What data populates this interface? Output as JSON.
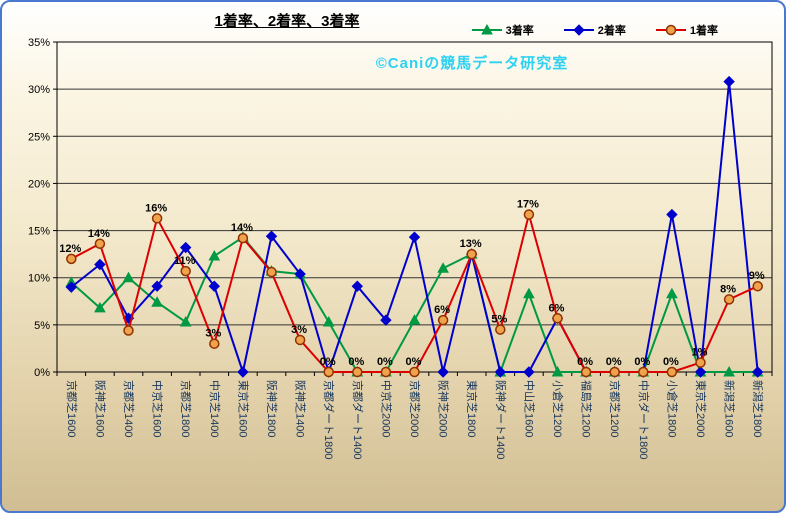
{
  "title": "1着率、2着率、3着率",
  "watermark": "©Caniの競馬データ研究室",
  "axis": {
    "y_tick_labels": [
      "0%",
      "5%",
      "10%",
      "15%",
      "20%",
      "25%",
      "30%",
      "35%"
    ]
  },
  "colors": {
    "window_border": "#4a77cf",
    "grid": "#333333",
    "x_label": "#17365d",
    "y_label": "#000000",
    "data_label": "#000000",
    "watermark": "#2ed1f2"
  },
  "chart_data": {
    "type": "line",
    "title": "1着率、2着率、3着率",
    "xlabel": "",
    "ylabel": "",
    "ylim": [
      0,
      35
    ],
    "ytick_step": 5,
    "grid": true,
    "legend_position": "top-right",
    "categories": [
      "京都芝1600",
      "阪神芝1600",
      "京都芝1400",
      "中京芝1600",
      "京都芝1800",
      "中京芝1400",
      "東京芝1600",
      "阪神芝1800",
      "阪神芝1400",
      "京都ダート1800",
      "京都ダート1400",
      "中京芝2000",
      "京都芝2000",
      "阪神芝2000",
      "東京芝1800",
      "阪神ダート1400",
      "中山芝1600",
      "小倉芝1200",
      "福島芝1200",
      "京都芝1200",
      "中京ダート1800",
      "小倉芝1800",
      "東京芝2000",
      "新潟芝1600",
      "新潟芝1800"
    ],
    "series": [
      {
        "name": "3着率",
        "color": "#009944",
        "marker": "triangle",
        "values": [
          9.5,
          6.8,
          10.0,
          7.4,
          5.3,
          12.3,
          14.3,
          10.7,
          10.4,
          5.3,
          0,
          0,
          5.5,
          11.0,
          12.5,
          0,
          8.3,
          0,
          0,
          0,
          0,
          8.3,
          0,
          0,
          0
        ]
      },
      {
        "name": "2着率",
        "color": "#0000cc",
        "marker": "diamond",
        "values": [
          9.0,
          11.4,
          5.7,
          9.1,
          13.2,
          9.1,
          0,
          14.4,
          10.4,
          0,
          9.1,
          5.5,
          14.3,
          0,
          12.5,
          0,
          0,
          5.7,
          0,
          0,
          0,
          16.7,
          0,
          30.8,
          0
        ]
      },
      {
        "name": "1着率",
        "color": "#dd0000",
        "marker": "circle",
        "marker_fill": "#f0a24c",
        "marker_stroke": "#8f3200",
        "values": [
          12.0,
          13.6,
          4.4,
          16.3,
          10.7,
          3.0,
          14.2,
          10.6,
          3.4,
          0,
          0,
          0,
          0,
          5.5,
          12.5,
          4.5,
          16.7,
          5.7,
          0,
          0,
          0,
          0,
          1.0,
          7.7,
          9.1
        ],
        "labels": [
          "12%",
          "14%",
          "",
          "16%",
          "11%",
          "3%",
          "14%",
          "",
          "3%",
          "0%",
          "0%",
          "0%",
          "0%",
          "6%",
          "13%",
          "5%",
          "17%",
          "6%",
          "0%",
          "0%",
          "0%",
          "0%",
          "1%",
          "8%",
          "9%"
        ]
      }
    ]
  }
}
